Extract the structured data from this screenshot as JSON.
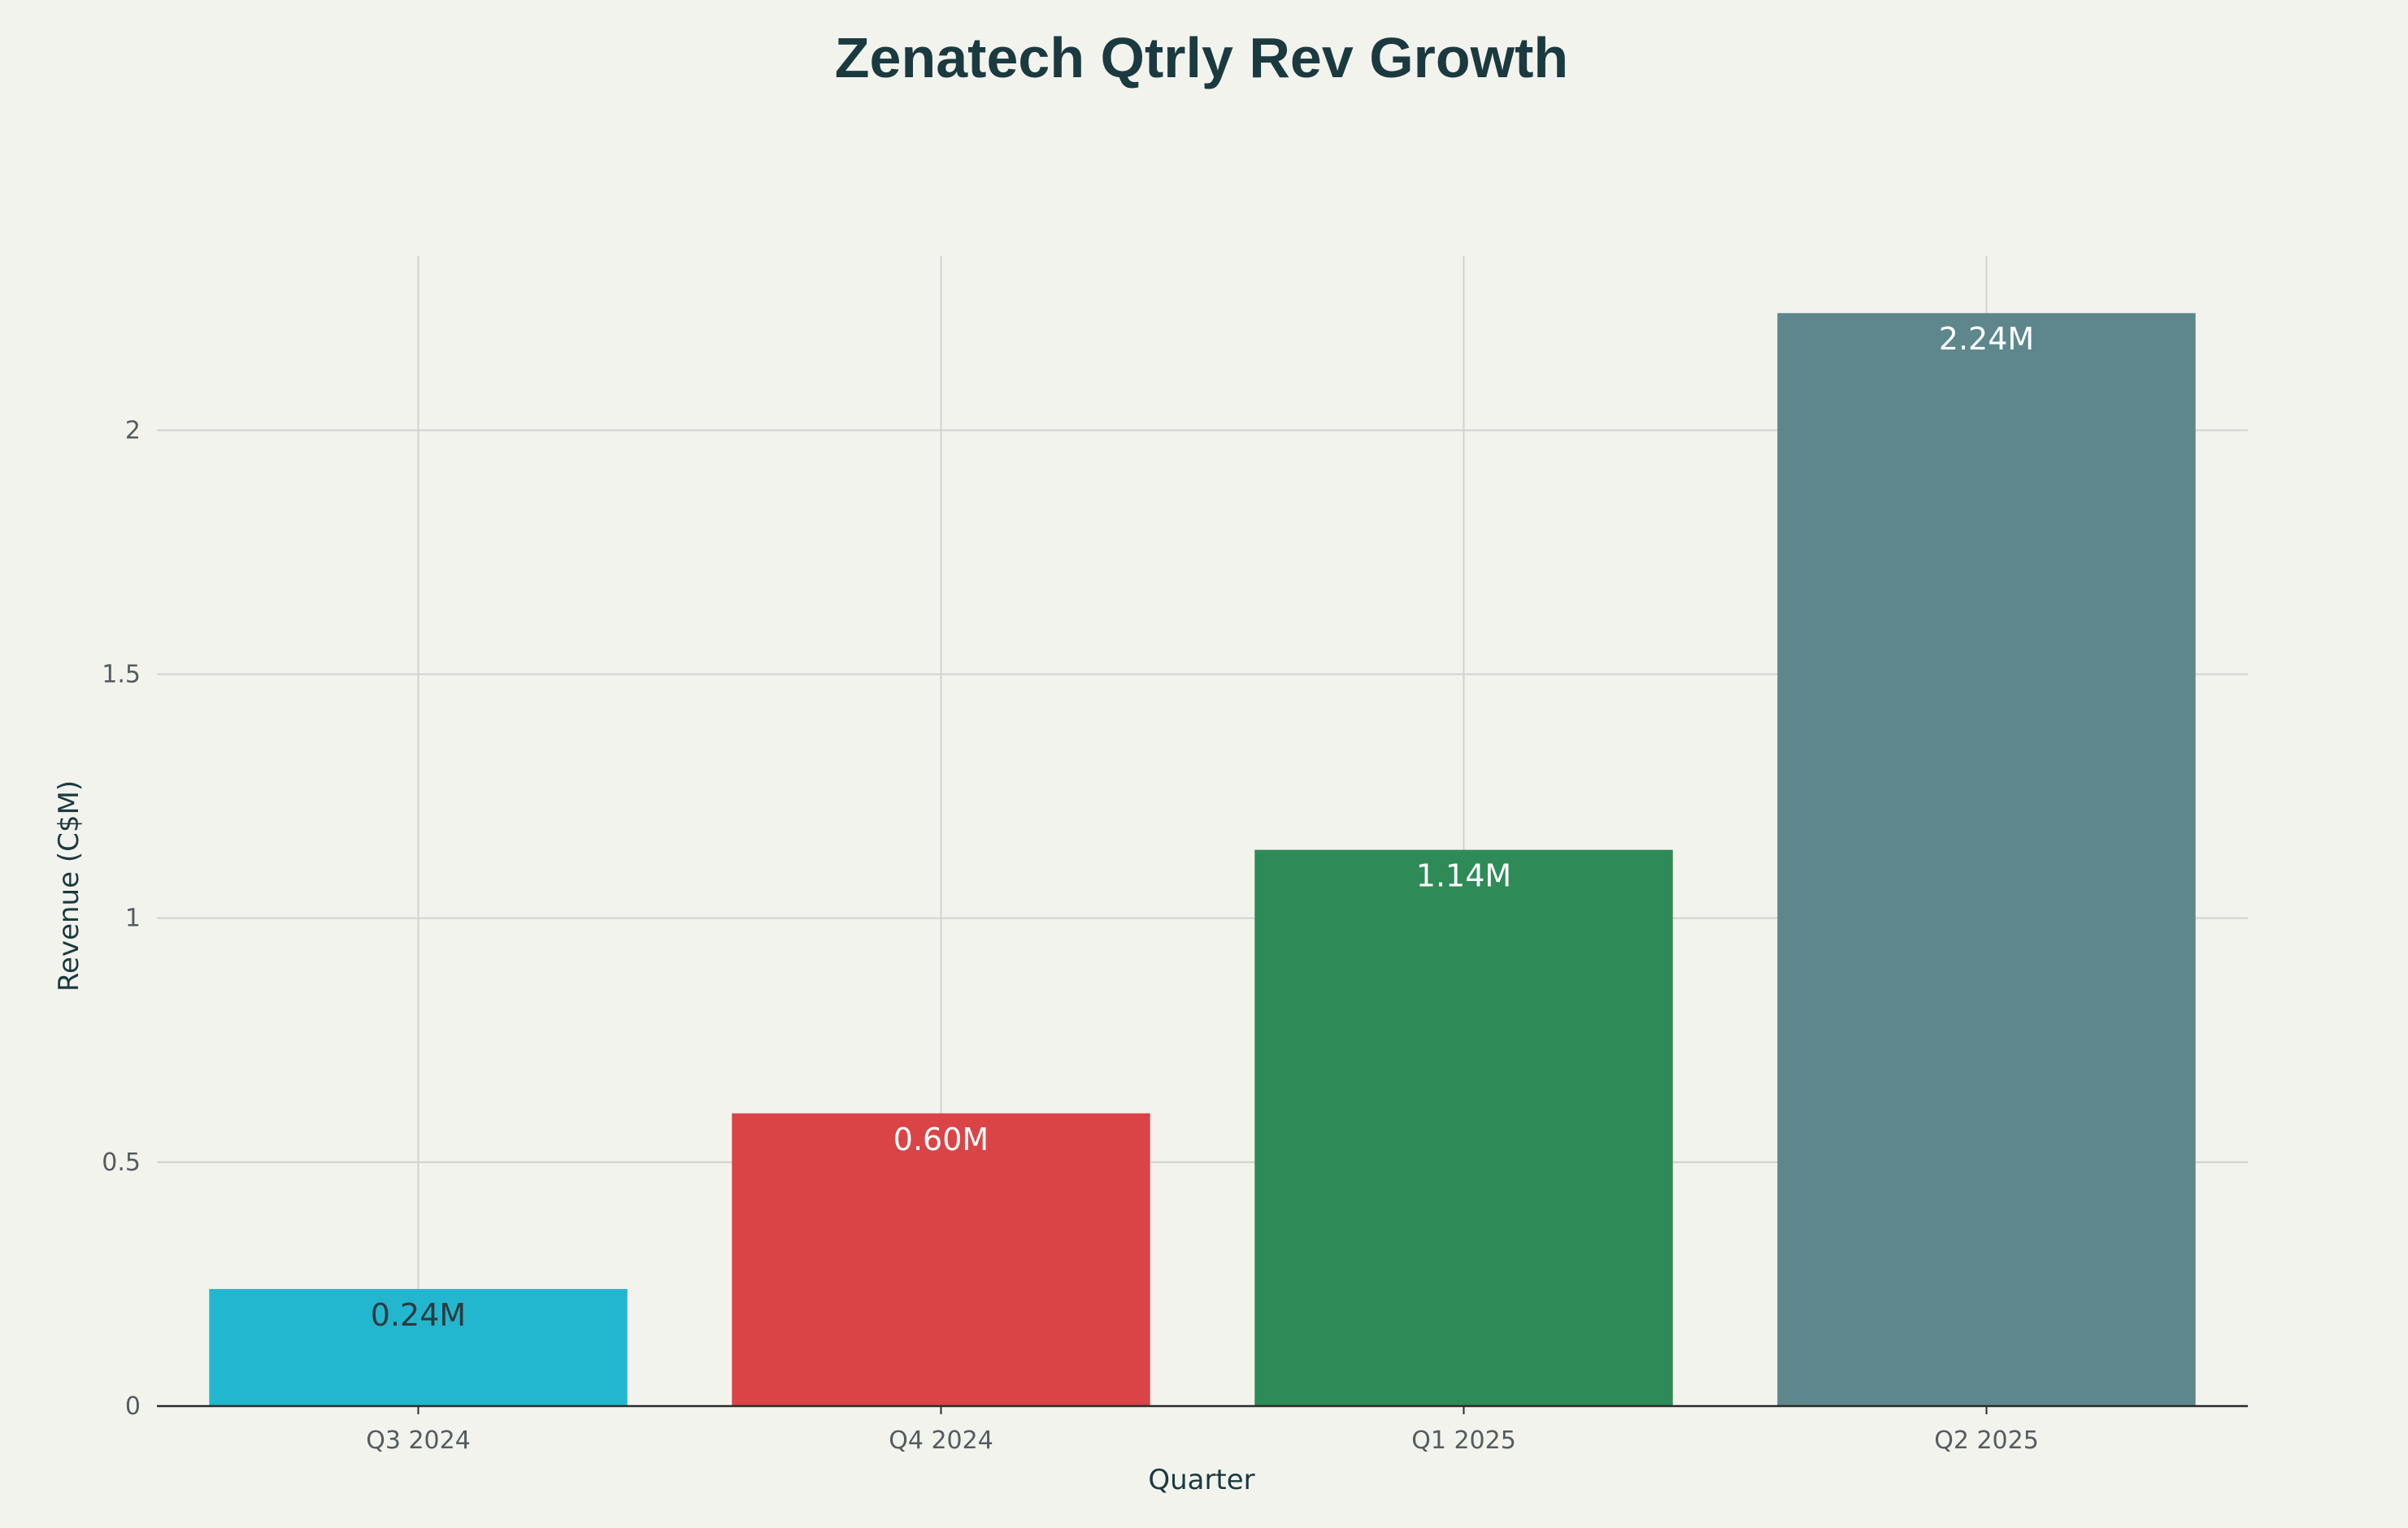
{
  "chart_data": {
    "type": "bar",
    "title": "Zenatech Qtrly Rev Growth",
    "xlabel": "Quarter",
    "ylabel": "Revenue (C$M)",
    "categories": [
      "Q3 2024",
      "Q4 2024",
      "Q1 2025",
      "Q2 2025"
    ],
    "values": [
      0.24,
      0.6,
      1.14,
      2.24
    ],
    "data_labels": [
      "0.24M",
      "0.60M",
      "1.14M",
      "2.24M"
    ],
    "bar_colors": [
      "#22b7ce",
      "#db4446",
      "#2e8b57",
      "#5d878c"
    ],
    "label_colors": [
      "#2d3a3f",
      "#ffffff",
      "#ffffff",
      "#ffffff"
    ],
    "ylim": [
      0,
      2.357
    ],
    "yticks": [
      0,
      0.5,
      1,
      1.5,
      2
    ],
    "ytick_labels": [
      "0",
      "0.5",
      "1",
      "1.5",
      "2"
    ],
    "grid": true,
    "legend": "none"
  }
}
